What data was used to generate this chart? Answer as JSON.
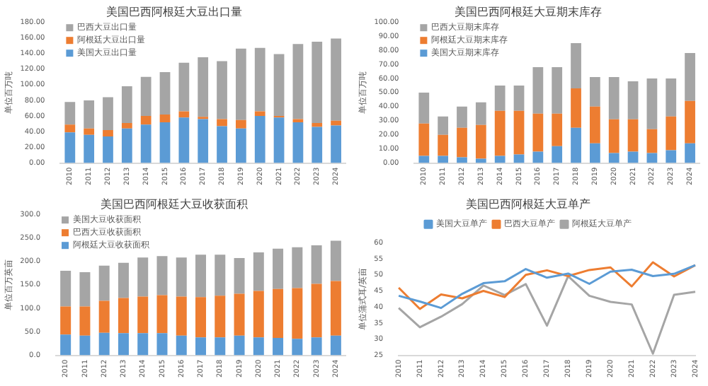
{
  "chart_data": [
    {
      "type": "bar",
      "stacked": true,
      "title": "美国巴西阿根廷大豆出口量",
      "ylabel": "单位百万吨",
      "categories": [
        "2010",
        "2011",
        "2012",
        "2013",
        "2014",
        "2015",
        "2016",
        "2017",
        "2018",
        "2019",
        "2020",
        "2021",
        "2022",
        "2023",
        "2024"
      ],
      "series": [
        {
          "name": "美国大豆出口量",
          "color": "#5b9bd5",
          "values": [
            39,
            36,
            34,
            44,
            49,
            52,
            58,
            56,
            47,
            44,
            60,
            58,
            52,
            46,
            48
          ]
        },
        {
          "name": "阿根廷大豆出口量",
          "color": "#ed7d31",
          "values": [
            10,
            8,
            8,
            7,
            11,
            10,
            8,
            3,
            9,
            11,
            6,
            2,
            4,
            5,
            6
          ]
        },
        {
          "name": "巴西大豆出口量",
          "color": "#a5a5a5",
          "values": [
            29,
            36,
            42,
            47,
            50,
            54,
            62,
            76,
            74,
            91,
            81,
            79,
            96,
            104,
            105
          ]
        }
      ],
      "ylim": [
        0,
        180
      ],
      "yticks": [
        {
          "value": 0,
          "label": "0.00"
        },
        {
          "value": 20,
          "label": "20.00"
        },
        {
          "value": 40,
          "label": "40.00"
        },
        {
          "value": 60,
          "label": "60.00"
        },
        {
          "value": 80,
          "label": "80.00"
        },
        {
          "value": 100,
          "label": "100.00"
        },
        {
          "value": 120,
          "label": "120.00"
        },
        {
          "value": 140,
          "label": "140.00"
        },
        {
          "value": 160,
          "label": "160.00"
        },
        {
          "value": 180,
          "label": "180.00"
        }
      ],
      "legend": "top left",
      "grid": false
    },
    {
      "type": "bar",
      "stacked": true,
      "title": "美国巴西阿根廷大豆期末库存",
      "ylabel": "单位百万吨",
      "categories": [
        "2010",
        "2011",
        "2012",
        "2013",
        "2014",
        "2015",
        "2016",
        "2017",
        "2018",
        "2019",
        "2020",
        "2021",
        "2022",
        "2023",
        "2024"
      ],
      "series": [
        {
          "name": "美国大豆期末库存",
          "color": "#5b9bd5",
          "values": [
            5,
            5,
            4,
            3,
            5,
            6,
            8,
            12,
            25,
            14,
            7,
            8,
            7,
            9,
            14
          ]
        },
        {
          "name": "阿根廷大豆期末库存",
          "color": "#ed7d31",
          "values": [
            23,
            15,
            21,
            24,
            32,
            31,
            27,
            23,
            28,
            26,
            24,
            23,
            17,
            24,
            30
          ]
        },
        {
          "name": "巴西大豆期末库存",
          "color": "#a5a5a5",
          "values": [
            22,
            13,
            15,
            16,
            18,
            18,
            33,
            33,
            32,
            21,
            30,
            27,
            36,
            27,
            34
          ]
        }
      ],
      "ylim": [
        0,
        100
      ],
      "yticks": [
        {
          "value": 0,
          "label": "0.00"
        },
        {
          "value": 10,
          "label": "10.00"
        },
        {
          "value": 20,
          "label": "20.00"
        },
        {
          "value": 30,
          "label": "30.00"
        },
        {
          "value": 40,
          "label": "40.00"
        },
        {
          "value": 50,
          "label": "50.00"
        },
        {
          "value": 60,
          "label": "60.00"
        },
        {
          "value": 70,
          "label": "70.00"
        },
        {
          "value": 80,
          "label": "80.00"
        },
        {
          "value": 90,
          "label": "90.00"
        },
        {
          "value": 100,
          "label": "100.00"
        }
      ],
      "legend": "top left",
      "grid": false
    },
    {
      "type": "bar",
      "stacked": true,
      "title": "美国巴西阿根廷大豆收获面积",
      "ylabel": "单位百万英亩",
      "categories": [
        "2010",
        "2011",
        "2012",
        "2013",
        "2014",
        "2015",
        "2016",
        "2017",
        "2018",
        "2019",
        "2020",
        "2021",
        "2022",
        "2023",
        "2024"
      ],
      "series": [
        {
          "name": "阿根廷大豆收获面积",
          "color": "#5b9bd5",
          "values": [
            44,
            42,
            48,
            47,
            47,
            47,
            42,
            38,
            38,
            42,
            38,
            37,
            35,
            38,
            42
          ]
        },
        {
          "name": "巴西大豆收获面积",
          "color": "#ed7d31",
          "values": [
            60,
            62,
            68,
            75,
            78,
            81,
            83,
            86,
            89,
            89,
            99,
            104,
            108,
            114,
            116
          ]
        },
        {
          "name": "美国大豆收获面积",
          "color": "#a5a5a5",
          "values": [
            76,
            73,
            75,
            75,
            83,
            83,
            83,
            90,
            87,
            76,
            82,
            86,
            87,
            82,
            86
          ]
        }
      ],
      "ylim": [
        0,
        300
      ],
      "yticks": [
        {
          "value": 0,
          "label": "0.0"
        },
        {
          "value": 50,
          "label": "50.0"
        },
        {
          "value": 100,
          "label": "100.0"
        },
        {
          "value": 150,
          "label": "150.0"
        },
        {
          "value": 200,
          "label": "200.0"
        },
        {
          "value": 250,
          "label": "250.0"
        },
        {
          "value": 300,
          "label": "300.0"
        }
      ],
      "legend": "top left",
      "grid": false
    },
    {
      "type": "line",
      "title": "美国巴西阿根廷大豆单产",
      "ylabel": "单位蒲式耳/英亩",
      "categories": [
        "2010",
        "2011",
        "2012",
        "2013",
        "2014",
        "2015",
        "2016",
        "2017",
        "2018",
        "2019",
        "2020",
        "2021",
        "2022",
        "2023",
        "2024"
      ],
      "series": [
        {
          "name": "美国大豆单产",
          "color": "#5b9bd5",
          "values": [
            43.5,
            41.7,
            39.7,
            44.1,
            47.4,
            48,
            51.8,
            49.1,
            50.4,
            47.2,
            51,
            51.6,
            49.6,
            50.3,
            53
          ]
        },
        {
          "name": "巴西大豆单产",
          "color": "#ed7d31",
          "values": [
            46,
            39.4,
            43.9,
            42.7,
            45,
            43.1,
            50,
            51.4,
            49.6,
            51.5,
            52.3,
            46.4,
            53.9,
            49.5,
            53
          ]
        },
        {
          "name": "阿根廷大豆单产",
          "color": "#a5a5a5",
          "values": [
            39.7,
            33.7,
            37,
            40.9,
            46.7,
            43.7,
            47.1,
            34.2,
            49.6,
            43.5,
            41.6,
            40.8,
            25.5,
            43.8,
            44.7
          ]
        }
      ],
      "ylim": [
        25,
        60
      ],
      "yticks": [
        25,
        30,
        35,
        40,
        45,
        50,
        55,
        60
      ],
      "legend": "top",
      "marker": "none",
      "line_style": "solid",
      "grid": false
    }
  ]
}
